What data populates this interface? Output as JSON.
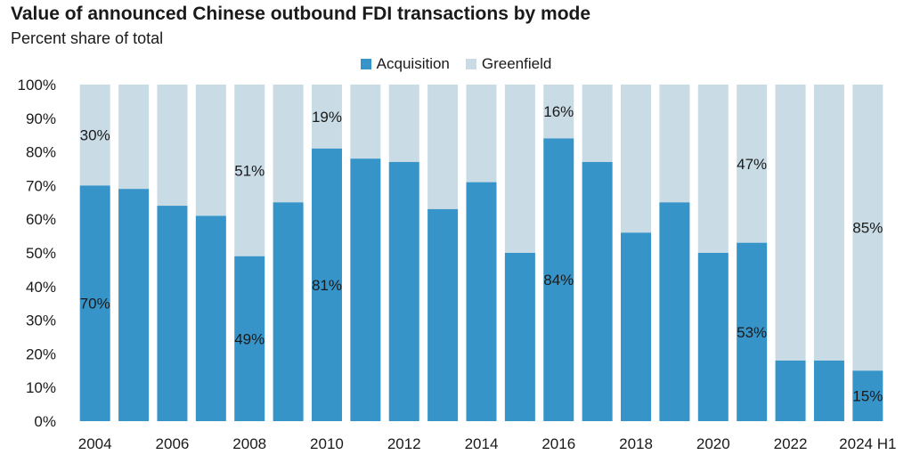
{
  "colors": {
    "acquisition": "#3694c8",
    "greenfield": "#c9dbe5",
    "gridline": "#d9d9d9"
  },
  "chart_data": {
    "type": "bar",
    "stacked": true,
    "title": "Value of announced Chinese outbound FDI transactions by mode",
    "subtitle": "Percent share of total",
    "legend_position": "top-center",
    "grid": false,
    "ylim": [
      0,
      100
    ],
    "y_ticks": [
      "0%",
      "10%",
      "20%",
      "30%",
      "40%",
      "50%",
      "60%",
      "70%",
      "80%",
      "90%",
      "100%"
    ],
    "categories": [
      "2004",
      "2005",
      "2006",
      "2007",
      "2008",
      "2009",
      "2010",
      "2011",
      "2012",
      "2013",
      "2014",
      "2015",
      "2016",
      "2017",
      "2018",
      "2019",
      "2020",
      "2021",
      "2022",
      "2023",
      "2024 H1"
    ],
    "x_tick_labels": [
      "2004",
      "",
      "2006",
      "",
      "2008",
      "",
      "2010",
      "",
      "2012",
      "",
      "2014",
      "",
      "2016",
      "",
      "2018",
      "",
      "2020",
      "",
      "2022",
      "",
      "2024 H1"
    ],
    "series": [
      {
        "name": "Acquisition",
        "values": [
          70,
          69,
          64,
          61,
          49,
          65,
          81,
          78,
          77,
          63,
          71,
          50,
          84,
          77,
          56,
          65,
          50,
          53,
          18,
          18,
          15
        ]
      },
      {
        "name": "Greenfield",
        "values": [
          30,
          31,
          36,
          39,
          51,
          35,
          19,
          22,
          23,
          37,
          29,
          50,
          16,
          23,
          44,
          35,
          50,
          47,
          82,
          82,
          85
        ]
      }
    ],
    "annotations": [
      {
        "category": "2004",
        "series": "Greenfield",
        "text": "30%"
      },
      {
        "category": "2004",
        "series": "Acquisition",
        "text": "70%"
      },
      {
        "category": "2008",
        "series": "Greenfield",
        "text": "51%"
      },
      {
        "category": "2008",
        "series": "Acquisition",
        "text": "49%"
      },
      {
        "category": "2010",
        "series": "Greenfield",
        "text": "19%"
      },
      {
        "category": "2010",
        "series": "Acquisition",
        "text": "81%"
      },
      {
        "category": "2016",
        "series": "Greenfield",
        "text": "16%"
      },
      {
        "category": "2016",
        "series": "Acquisition",
        "text": "84%"
      },
      {
        "category": "2021",
        "series": "Greenfield",
        "text": "47%"
      },
      {
        "category": "2021",
        "series": "Acquisition",
        "text": "53%"
      },
      {
        "category": "2024 H1",
        "series": "Greenfield",
        "text": "85%"
      },
      {
        "category": "2024 H1",
        "series": "Acquisition",
        "text": "15%"
      }
    ]
  }
}
